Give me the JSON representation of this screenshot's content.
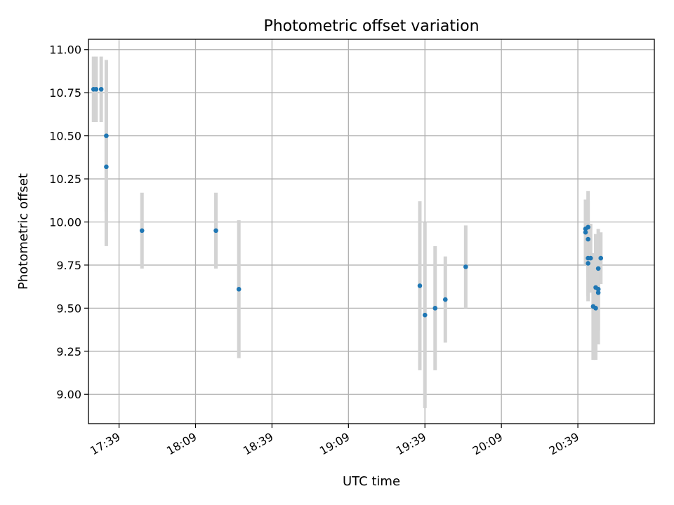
{
  "chart_data": {
    "type": "scatter",
    "title": "Photometric offset variation",
    "xlabel": "UTC time",
    "ylabel": "Photometric offset",
    "x_tick_labels": [
      "17:39",
      "18:09",
      "18:39",
      "19:09",
      "19:39",
      "20:09",
      "20:39"
    ],
    "y_tick_labels": [
      "9.00",
      "9.25",
      "9.50",
      "9.75",
      "10.00",
      "10.25",
      "10.50",
      "10.75",
      "11.00"
    ],
    "xlim": [
      "17:27",
      "21:09"
    ],
    "ylim": [
      8.83,
      11.06
    ],
    "grid": true,
    "colors": {
      "points": "#1f77b4",
      "errorbars": "#d3d3d3",
      "grid": "#b0b0b0"
    },
    "points": [
      {
        "x": "17:29",
        "y": 10.77,
        "err": 0.19
      },
      {
        "x": "17:30",
        "y": 10.77,
        "err": 0.19
      },
      {
        "x": "17:32",
        "y": 10.77,
        "err": 0.19
      },
      {
        "x": "17:34",
        "y": 10.5,
        "err": 0.44
      },
      {
        "x": "17:34",
        "y": 10.32,
        "err": 0.46
      },
      {
        "x": "17:48",
        "y": 9.95,
        "err": 0.22
      },
      {
        "x": "18:17",
        "y": 9.95,
        "err": 0.22
      },
      {
        "x": "18:26",
        "y": 9.61,
        "err": 0.4
      },
      {
        "x": "19:37",
        "y": 9.63,
        "err": 0.49
      },
      {
        "x": "19:39",
        "y": 9.46,
        "err": 0.54
      },
      {
        "x": "19:43",
        "y": 9.5,
        "err": 0.36
      },
      {
        "x": "19:47",
        "y": 9.55,
        "err": 0.25
      },
      {
        "x": "19:55",
        "y": 9.74,
        "err": 0.24
      },
      {
        "x": "20:42",
        "y": 9.94,
        "err": 0.19
      },
      {
        "x": "20:42",
        "y": 9.96,
        "err": 0.17
      },
      {
        "x": "20:43",
        "y": 9.97,
        "err": 0.21
      },
      {
        "x": "20:43",
        "y": 9.9,
        "err": 0.22
      },
      {
        "x": "20:43",
        "y": 9.79,
        "err": 0.22
      },
      {
        "x": "20:43",
        "y": 9.76,
        "err": 0.22
      },
      {
        "x": "20:44",
        "y": 9.79,
        "err": 0.2
      },
      {
        "x": "20:45",
        "y": 9.51,
        "err": 0.31
      },
      {
        "x": "20:46",
        "y": 9.5,
        "err": 0.3
      },
      {
        "x": "20:46",
        "y": 9.62,
        "err": 0.31
      },
      {
        "x": "20:47",
        "y": 9.61,
        "err": 0.32
      },
      {
        "x": "20:47",
        "y": 9.59,
        "err": 0.22
      },
      {
        "x": "20:47",
        "y": 9.61,
        "err": 0.24
      },
      {
        "x": "20:47",
        "y": 9.73,
        "err": 0.23
      },
      {
        "x": "20:48",
        "y": 9.79,
        "err": 0.15
      }
    ]
  }
}
